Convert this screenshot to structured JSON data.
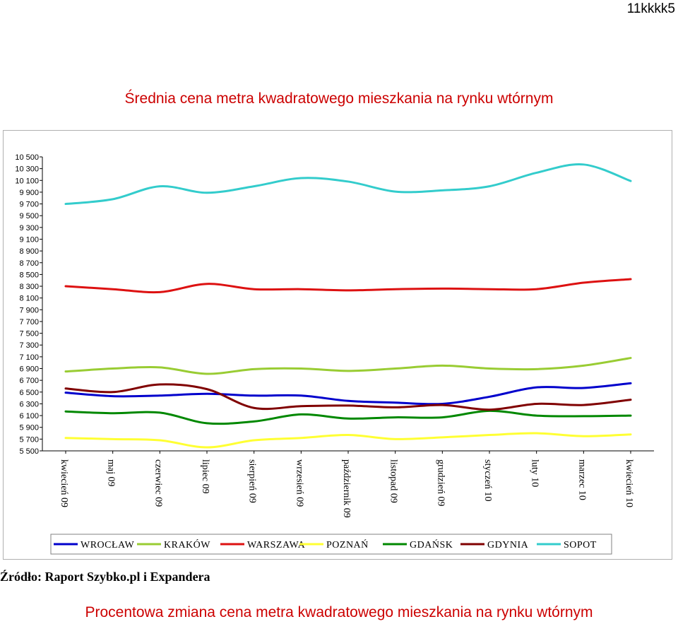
{
  "page": {
    "code": "11kkkk5",
    "source": "Źródło: Raport Szybko.pl i Expandera",
    "bottom_title": "Procentowa zmiana cena metra kwadratowego mieszkania na rynku wtórnym"
  },
  "chart_data": {
    "type": "line",
    "title": "Średnia cena metra kwadratowego mieszkania na rynku wtórnym",
    "xlabel": "",
    "ylabel": "",
    "ylim": [
      5500,
      10500
    ],
    "yticks": [
      5500,
      5700,
      5900,
      6100,
      6300,
      6500,
      6700,
      6900,
      7100,
      7300,
      7500,
      7700,
      7900,
      8100,
      8300,
      8500,
      8700,
      8900,
      9100,
      9300,
      9500,
      9700,
      9900,
      10100,
      10300,
      10500
    ],
    "ytick_labels": [
      "5 500",
      "5 700",
      "5 900",
      "6 100",
      "6 300",
      "6 500",
      "6 700",
      "6 900",
      "7 100",
      "7 300",
      "7 500",
      "7 700",
      "7 900",
      "8 100",
      "8 300",
      "8 500",
      "8 700",
      "8 900",
      "9 100",
      "9 300",
      "9 500",
      "9 700",
      "9 900",
      "10 100",
      "10 300",
      "10 500"
    ],
    "grid": false,
    "legend": "bottom",
    "categories": [
      "kwiecień 09",
      "maj 09",
      "czerwiec 09",
      "lipiec 09",
      "sierpień 09",
      "wrzesień 09",
      "październik 09",
      "listopad 09",
      "grudzień 09",
      "styczeń 10",
      "luty 10",
      "marzec 10",
      "kwiecień 10"
    ],
    "series": [
      {
        "name": "WROCŁAW",
        "color": "#0000cc",
        "values": [
          6490,
          6430,
          6440,
          6470,
          6440,
          6440,
          6350,
          6320,
          6300,
          6420,
          6580,
          6570,
          6650
        ]
      },
      {
        "name": "KRAKÓW",
        "color": "#99cc33",
        "values": [
          6850,
          6900,
          6920,
          6810,
          6890,
          6900,
          6860,
          6900,
          6950,
          6900,
          6890,
          6950,
          7080
        ]
      },
      {
        "name": "WARSZAWA",
        "color": "#dd1111",
        "values": [
          8300,
          8250,
          8200,
          8340,
          8250,
          8250,
          8230,
          8250,
          8260,
          8250,
          8250,
          8360,
          8420
        ]
      },
      {
        "name": "POZNAŃ",
        "color": "#ffff33",
        "values": [
          5720,
          5700,
          5680,
          5560,
          5680,
          5720,
          5770,
          5700,
          5730,
          5770,
          5800,
          5750,
          5780
        ]
      },
      {
        "name": "GDAŃSK",
        "color": "#008800",
        "values": [
          6170,
          6140,
          6150,
          5970,
          6000,
          6120,
          6050,
          6070,
          6070,
          6180,
          6100,
          6090,
          6100
        ]
      },
      {
        "name": "GDYNIA",
        "color": "#800000",
        "values": [
          6560,
          6500,
          6630,
          6550,
          6230,
          6260,
          6270,
          6240,
          6280,
          6200,
          6300,
          6280,
          6370
        ]
      },
      {
        "name": "SOPOT",
        "color": "#33cccc",
        "values": [
          9700,
          9780,
          10000,
          9890,
          10000,
          10140,
          10080,
          9910,
          9930,
          10000,
          10230,
          10370,
          10090
        ]
      }
    ]
  }
}
